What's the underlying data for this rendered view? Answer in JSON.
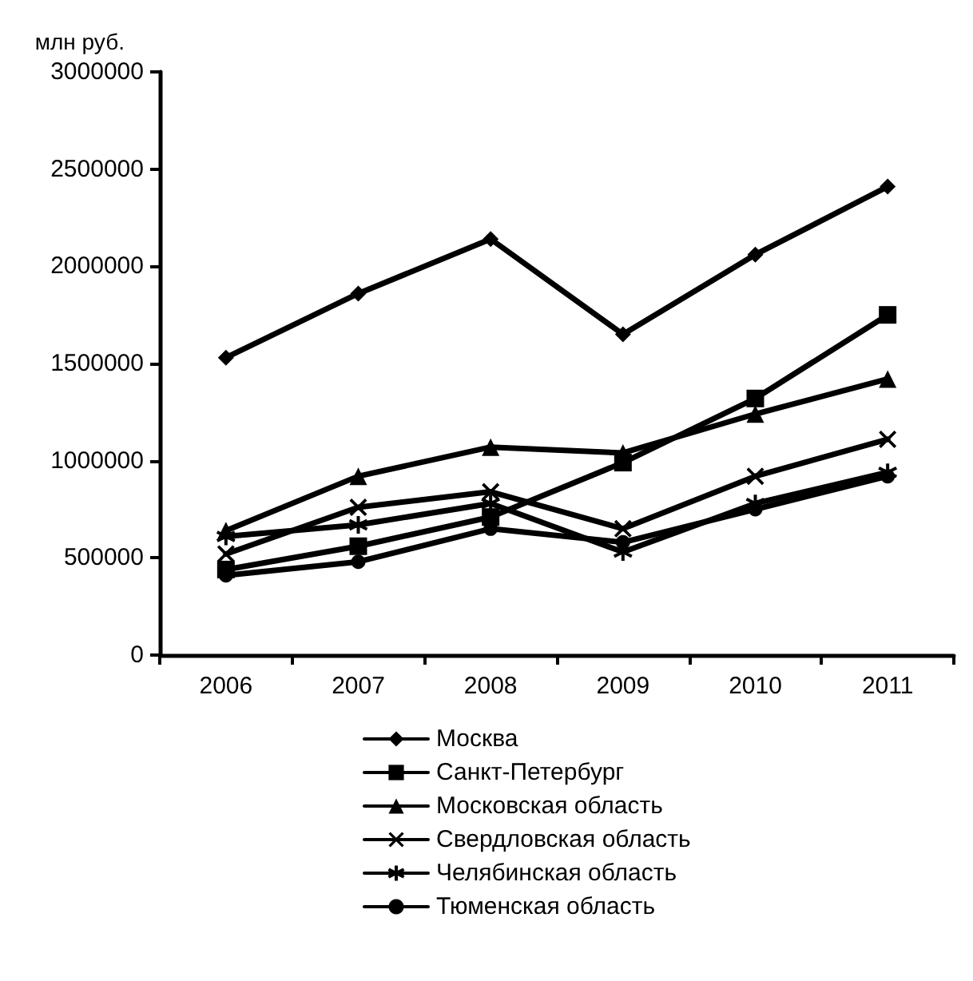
{
  "chart_data": {
    "type": "line",
    "ylabel": "млн руб.",
    "categories": [
      "2006",
      "2007",
      "2008",
      "2009",
      "2010",
      "2011"
    ],
    "ylim": [
      0,
      3000000
    ],
    "yticks": [
      0,
      500000,
      1000000,
      1500000,
      2000000,
      2500000,
      3000000
    ],
    "grid": false,
    "legend": "bottom",
    "line_style": "solid",
    "series": [
      {
        "name": "Москва",
        "color": "#000000",
        "marker": "diamond",
        "values": [
          1530000,
          1860000,
          2140000,
          1650000,
          2060000,
          2410000
        ]
      },
      {
        "name": "Санкт-Петербург",
        "color": "#000000",
        "marker": "square",
        "values": [
          440000,
          560000,
          710000,
          990000,
          1320000,
          1750000
        ]
      },
      {
        "name": "Московская область",
        "color": "#000000",
        "marker": "triangle",
        "values": [
          640000,
          920000,
          1070000,
          1040000,
          1240000,
          1420000
        ]
      },
      {
        "name": "Свердловская область",
        "color": "#000000",
        "marker": "cross",
        "values": [
          520000,
          760000,
          840000,
          650000,
          920000,
          1110000
        ]
      },
      {
        "name": "Челябинская область",
        "color": "#000000",
        "marker": "star",
        "values": [
          610000,
          670000,
          780000,
          530000,
          780000,
          940000
        ]
      },
      {
        "name": "Тюменская область",
        "color": "#000000",
        "marker": "circle",
        "values": [
          410000,
          480000,
          650000,
          580000,
          750000,
          920000
        ]
      }
    ]
  }
}
